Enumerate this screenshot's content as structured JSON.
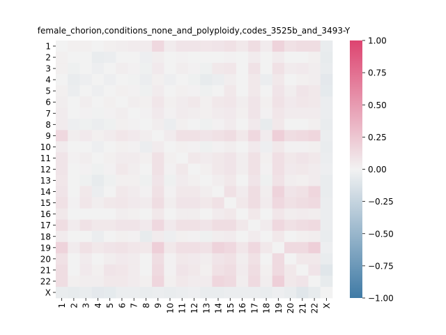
{
  "chart_data": {
    "type": "heatmap",
    "title": "female_chorion,conditions_none_and_polyploidy,codes_3525b_and_3493-Y",
    "xlabel": "",
    "ylabel": "",
    "labels": [
      "1",
      "2",
      "3",
      "4",
      "5",
      "6",
      "7",
      "8",
      "9",
      "10",
      "11",
      "12",
      "13",
      "14",
      "15",
      "16",
      "17",
      "18",
      "19",
      "20",
      "21",
      "22",
      "X"
    ],
    "colorbar": {
      "min": -1.0,
      "max": 1.0,
      "ticks": [
        1.0,
        0.75,
        0.5,
        0.25,
        0.0,
        -0.25,
        -0.5,
        -0.75,
        -1.0
      ],
      "tick_labels": [
        "1.00",
        "0.75",
        "0.50",
        "0.25",
        "0.00",
        "−0.25",
        "−0.50",
        "−0.75",
        "−1.00"
      ],
      "low_color": "#3f7aa5",
      "mid_color": "#f2f2f2",
      "high_color": "#dd4470"
    },
    "matrix": [
      [
        0.0,
        0.02,
        0.02,
        0.0,
        0.02,
        0.03,
        0.04,
        0.04,
        0.15,
        0.04,
        0.08,
        0.08,
        0.07,
        0.08,
        0.1,
        0.06,
        0.12,
        0.04,
        0.18,
        0.1,
        0.12,
        0.12,
        -0.05
      ],
      [
        0.02,
        0.0,
        0.0,
        -0.05,
        -0.04,
        0.0,
        0.0,
        -0.03,
        0.03,
        0.0,
        0.01,
        0.0,
        0.0,
        0.0,
        0.01,
        0.0,
        0.04,
        0.0,
        0.04,
        0.0,
        0.0,
        0.02,
        -0.06
      ],
      [
        0.02,
        -0.02,
        0.0,
        -0.03,
        0.0,
        0.03,
        0.01,
        -0.02,
        0.05,
        0.0,
        0.03,
        0.01,
        -0.02,
        0.06,
        0.07,
        0.0,
        0.09,
        0.0,
        0.1,
        0.04,
        0.05,
        0.03,
        -0.05
      ],
      [
        0.0,
        -0.05,
        -0.03,
        0.0,
        -0.03,
        0.0,
        -0.01,
        -0.04,
        0.02,
        -0.03,
        0.0,
        -0.02,
        -0.06,
        -0.04,
        0.03,
        0.0,
        0.06,
        -0.04,
        0.06,
        0.0,
        0.02,
        0.03,
        -0.08
      ],
      [
        0.02,
        -0.04,
        0.0,
        -0.03,
        0.0,
        0.02,
        0.01,
        -0.02,
        0.04,
        0.0,
        0.02,
        0.01,
        -0.02,
        0.0,
        0.06,
        0.0,
        0.06,
        0.0,
        0.08,
        0.03,
        0.08,
        0.06,
        -0.07
      ],
      [
        0.03,
        0.0,
        0.03,
        0.0,
        0.02,
        0.0,
        0.03,
        0.02,
        0.07,
        0.02,
        0.04,
        0.06,
        0.02,
        0.06,
        0.07,
        0.03,
        0.08,
        0.02,
        0.09,
        0.05,
        0.07,
        0.06,
        -0.04
      ],
      [
        0.04,
        0.0,
        0.01,
        -0.01,
        0.01,
        0.03,
        0.0,
        0.01,
        0.05,
        0.01,
        0.04,
        0.03,
        0.02,
        0.04,
        0.05,
        0.02,
        0.08,
        0.01,
        0.07,
        0.04,
        0.04,
        0.04,
        -0.04
      ],
      [
        0.04,
        -0.03,
        -0.02,
        -0.04,
        -0.02,
        0.02,
        0.01,
        0.0,
        0.03,
        -0.04,
        0.02,
        0.0,
        -0.02,
        0.01,
        0.04,
        0.0,
        0.05,
        -0.06,
        0.06,
        0.0,
        0.0,
        0.02,
        -0.05
      ],
      [
        0.15,
        0.03,
        0.05,
        0.02,
        0.04,
        0.07,
        0.05,
        0.03,
        0.0,
        0.04,
        0.1,
        0.1,
        0.08,
        0.1,
        0.12,
        0.06,
        0.15,
        0.04,
        0.2,
        0.12,
        0.14,
        0.16,
        -0.04
      ],
      [
        0.04,
        0.0,
        0.0,
        -0.03,
        0.0,
        0.02,
        0.01,
        -0.04,
        0.04,
        0.0,
        0.02,
        0.01,
        -0.02,
        0.01,
        0.03,
        0.0,
        0.05,
        -0.03,
        0.06,
        0.01,
        0.01,
        0.02,
        -0.05
      ],
      [
        0.08,
        0.01,
        0.03,
        0.0,
        0.02,
        0.04,
        0.04,
        0.02,
        0.1,
        0.02,
        0.0,
        0.06,
        0.04,
        0.06,
        0.08,
        0.03,
        0.1,
        0.02,
        0.11,
        0.06,
        0.08,
        0.06,
        -0.04
      ],
      [
        0.08,
        0.0,
        0.01,
        -0.02,
        0.01,
        0.06,
        0.03,
        0.0,
        0.1,
        0.01,
        0.06,
        0.0,
        0.02,
        0.06,
        0.08,
        0.03,
        0.1,
        0.01,
        0.11,
        0.05,
        0.06,
        0.04,
        -0.03
      ],
      [
        0.07,
        0.0,
        -0.02,
        -0.06,
        -0.02,
        0.02,
        0.02,
        -0.02,
        0.08,
        -0.02,
        0.04,
        0.02,
        0.0,
        0.03,
        0.06,
        0.0,
        0.08,
        -0.02,
        0.09,
        0.03,
        0.02,
        0.04,
        -0.05
      ],
      [
        0.08,
        0.0,
        0.06,
        -0.04,
        0.0,
        0.06,
        0.04,
        0.01,
        0.1,
        0.01,
        0.06,
        0.06,
        0.03,
        0.0,
        0.1,
        0.04,
        0.12,
        0.03,
        0.18,
        0.08,
        0.1,
        0.16,
        -0.05
      ],
      [
        0.1,
        0.01,
        0.07,
        0.03,
        0.06,
        0.07,
        0.05,
        0.04,
        0.12,
        0.03,
        0.08,
        0.08,
        0.06,
        0.1,
        0.0,
        0.06,
        0.12,
        0.04,
        0.15,
        0.1,
        0.12,
        0.14,
        -0.04
      ],
      [
        0.06,
        0.0,
        0.0,
        0.0,
        0.0,
        0.03,
        0.02,
        0.0,
        0.06,
        0.0,
        0.03,
        0.03,
        0.0,
        0.04,
        0.06,
        0.0,
        0.06,
        0.0,
        0.07,
        0.03,
        0.04,
        0.03,
        -0.04
      ],
      [
        0.12,
        0.04,
        0.09,
        0.06,
        0.06,
        0.08,
        0.08,
        0.05,
        0.15,
        0.05,
        0.1,
        0.1,
        0.08,
        0.12,
        0.12,
        0.06,
        0.0,
        0.04,
        0.15,
        0.1,
        0.12,
        0.14,
        -0.04
      ],
      [
        0.04,
        0.0,
        0.0,
        -0.04,
        0.0,
        0.02,
        0.01,
        -0.06,
        0.04,
        -0.03,
        0.02,
        0.01,
        -0.02,
        0.03,
        0.04,
        0.0,
        0.04,
        0.0,
        0.06,
        0.0,
        0.02,
        0.03,
        -0.05
      ],
      [
        0.18,
        0.04,
        0.1,
        0.06,
        0.08,
        0.09,
        0.07,
        0.06,
        0.2,
        0.06,
        0.11,
        0.11,
        0.09,
        0.18,
        0.15,
        0.07,
        0.15,
        0.06,
        0.0,
        0.14,
        0.14,
        0.2,
        -0.03
      ],
      [
        0.1,
        0.0,
        0.04,
        0.0,
        0.03,
        0.05,
        0.04,
        0.0,
        0.12,
        0.01,
        0.06,
        0.05,
        0.03,
        0.08,
        0.1,
        0.03,
        0.1,
        0.0,
        0.14,
        0.0,
        0.06,
        0.06,
        -0.05
      ],
      [
        0.12,
        0.0,
        0.05,
        0.02,
        0.08,
        0.07,
        0.04,
        0.0,
        0.14,
        0.01,
        0.08,
        0.06,
        0.02,
        0.1,
        0.12,
        0.04,
        0.12,
        0.02,
        0.14,
        0.06,
        0.0,
        0.08,
        -0.1
      ],
      [
        0.12,
        0.02,
        0.03,
        0.03,
        0.06,
        0.06,
        0.04,
        0.02,
        0.16,
        0.02,
        0.06,
        0.04,
        0.04,
        0.16,
        0.14,
        0.03,
        0.14,
        0.03,
        0.2,
        0.06,
        0.08,
        0.0,
        -0.06
      ],
      [
        -0.05,
        -0.06,
        -0.05,
        -0.08,
        -0.07,
        -0.04,
        -0.04,
        -0.05,
        -0.04,
        -0.05,
        -0.04,
        -0.03,
        -0.05,
        -0.05,
        -0.04,
        -0.04,
        -0.04,
        -0.05,
        -0.03,
        -0.05,
        -0.1,
        -0.06,
        0.0
      ]
    ]
  }
}
